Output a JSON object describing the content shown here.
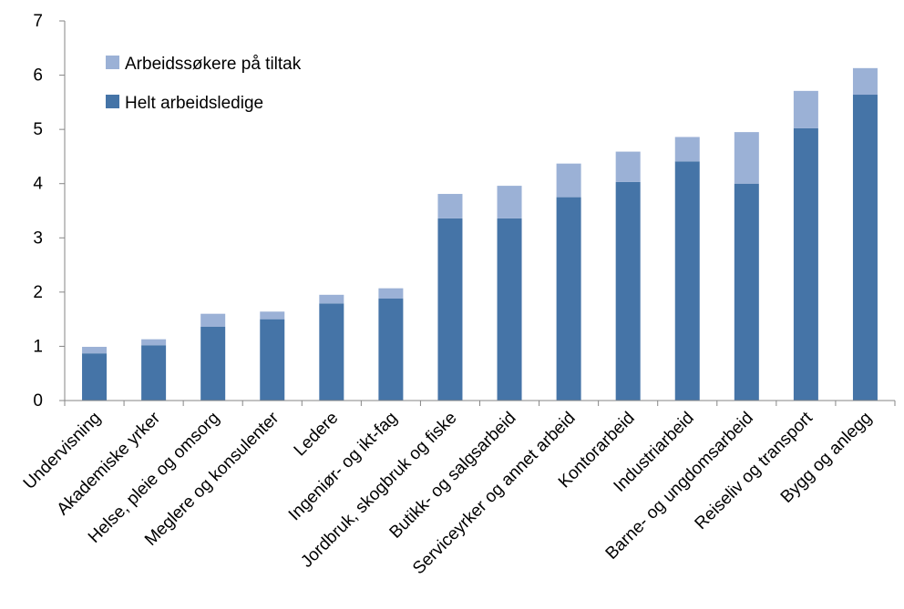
{
  "chart_data": {
    "type": "bar",
    "stacked": true,
    "categories": [
      "Undervisning",
      "Akademiske yrker",
      "Helse, pleie og omsorg",
      "Meglere og konsulenter",
      "Ledere",
      "Ingeniør- og ikt-fag",
      "Jordbruk, skogbruk og fiske",
      "Butikk- og salgsarbeid",
      "Serviceyrker og annet arbeid",
      "Kontorarbeid",
      "Industriarbeid",
      "Barne- og ungdomsarbeid",
      "Reiseliv og transport",
      "Bygg og anlegg"
    ],
    "series": [
      {
        "name": "Helt arbeidsledige",
        "color": "#4574A7",
        "values": [
          0.87,
          1.02,
          1.36,
          1.5,
          1.79,
          1.88,
          3.36,
          3.36,
          3.75,
          4.03,
          4.41,
          4.0,
          5.02,
          5.64
        ]
      },
      {
        "name": "Arbeidssøkere på tiltak",
        "color": "#9BB1D6",
        "values": [
          0.12,
          0.11,
          0.24,
          0.14,
          0.16,
          0.19,
          0.45,
          0.6,
          0.62,
          0.56,
          0.45,
          0.95,
          0.69,
          0.49
        ]
      }
    ],
    "ylim": [
      0,
      7
    ],
    "yticks": [
      "0",
      "1",
      "2",
      "3",
      "4",
      "5",
      "6",
      "7"
    ],
    "xlabel": "",
    "ylabel": "",
    "grid": false,
    "legend_position": "top-left",
    "legend": [
      {
        "label": "Arbeidssøkere på tiltak",
        "color": "#9BB1D6"
      },
      {
        "label": "Helt arbeidsledige",
        "color": "#4574A7"
      }
    ],
    "axis_color": "#868686"
  }
}
